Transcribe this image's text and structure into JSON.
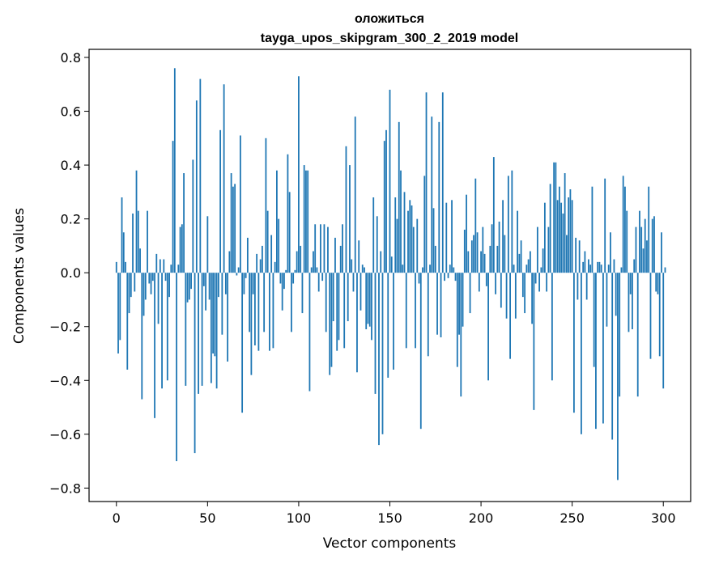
{
  "chart_data": {
    "type": "bar",
    "title_line1": "оложиться",
    "title_line2": "tayga_upos_skipgram_300_2_2019 model",
    "xlabel": "Vector components",
    "ylabel": "Components values",
    "xlim": [
      -15,
      315
    ],
    "ylim": [
      -0.85,
      0.83
    ],
    "x_ticks": [
      0,
      50,
      100,
      150,
      200,
      250,
      300
    ],
    "x_tick_labels": [
      "0",
      "50",
      "100",
      "150",
      "200",
      "250",
      "300"
    ],
    "y_ticks": [
      0.8,
      0.6,
      0.4,
      0.2,
      0.0,
      -0.2,
      -0.4,
      -0.6,
      -0.8
    ],
    "y_tick_labels": [
      "0.8",
      "0.6",
      "0.4",
      "0.2",
      "0.0",
      "−0.2",
      "−0.4",
      "−0.6",
      "−0.8"
    ],
    "bar_color": "#1f77b4",
    "values": [
      0.04,
      -0.3,
      -0.25,
      0.28,
      0.15,
      0.04,
      -0.36,
      -0.15,
      -0.09,
      0.22,
      -0.07,
      0.38,
      0.23,
      0.09,
      -0.47,
      -0.16,
      -0.1,
      0.23,
      -0.04,
      -0.08,
      -0.03,
      -0.54,
      0.07,
      -0.19,
      0.05,
      -0.43,
      0.05,
      -0.03,
      -0.4,
      -0.09,
      0.03,
      0.49,
      0.76,
      -0.7,
      0.03,
      0.17,
      0.18,
      0.37,
      -0.42,
      -0.11,
      -0.1,
      -0.06,
      0.42,
      -0.67,
      0.64,
      -0.45,
      0.72,
      -0.42,
      -0.05,
      -0.14,
      0.21,
      -0.1,
      -0.41,
      -0.3,
      -0.31,
      -0.43,
      -0.09,
      0.53,
      -0.23,
      0.7,
      -0.08,
      -0.33,
      0.08,
      0.37,
      0.32,
      0.33,
      -0.01,
      0.02,
      0.51,
      -0.52,
      -0.08,
      -0.02,
      0.13,
      -0.22,
      -0.38,
      -0.08,
      -0.27,
      0.07,
      -0.29,
      0.05,
      0.1,
      -0.22,
      0.5,
      0.23,
      -0.29,
      0.14,
      -0.28,
      0.04,
      0.38,
      0.2,
      -0.04,
      -0.14,
      -0.06,
      0.01,
      0.44,
      0.3,
      -0.22,
      -0.04,
      0.01,
      0.08,
      0.73,
      0.1,
      -0.15,
      0.4,
      0.38,
      0.38,
      -0.44,
      0.02,
      0.08,
      0.18,
      0.02,
      -0.07,
      0.18,
      -0.03,
      0.18,
      -0.22,
      0.17,
      -0.38,
      -0.35,
      -0.18,
      0.13,
      -0.29,
      -0.25,
      0.1,
      0.18,
      -0.28,
      0.47,
      -0.18,
      0.4,
      0.05,
      -0.07,
      0.58,
      -0.37,
      0.12,
      -0.14,
      0.03,
      0.02,
      -0.21,
      -0.19,
      -0.2,
      -0.25,
      0.28,
      -0.45,
      0.21,
      -0.64,
      0.08,
      -0.6,
      0.49,
      0.53,
      -0.39,
      0.68,
      0.06,
      -0.36,
      0.28,
      0.2,
      0.56,
      0.38,
      0.03,
      0.3,
      -0.28,
      0.23,
      0.27,
      0.25,
      0.17,
      -0.28,
      0.2,
      -0.04,
      -0.58,
      0.02,
      0.36,
      0.67,
      -0.31,
      0.03,
      0.58,
      0.24,
      0.1,
      -0.23,
      0.56,
      -0.24,
      0.67,
      -0.03,
      0.26,
      -0.02,
      0.03,
      0.27,
      0.02,
      -0.03,
      -0.35,
      -0.23,
      -0.46,
      -0.2,
      0.16,
      0.29,
      0.08,
      -0.15,
      0.12,
      0.14,
      0.35,
      0.15,
      -0.07,
      0.08,
      0.17,
      0.07,
      -0.05,
      -0.4,
      0.1,
      0.18,
      0.43,
      -0.08,
      0.1,
      0.19,
      -0.13,
      0.27,
      0.14,
      -0.17,
      0.36,
      -0.32,
      0.38,
      0.03,
      -0.17,
      0.23,
      0.07,
      0.12,
      -0.09,
      -0.15,
      0.03,
      0.05,
      0.08,
      -0.19,
      -0.51,
      -0.04,
      0.17,
      -0.07,
      0.02,
      0.09,
      0.26,
      -0.07,
      0.17,
      0.33,
      -0.4,
      0.41,
      0.41,
      0.27,
      0.32,
      0.26,
      0.22,
      0.37,
      0.14,
      0.28,
      0.31,
      0.27,
      -0.52,
      0.13,
      -0.1,
      0.12,
      -0.6,
      0.04,
      0.08,
      -0.1,
      0.05,
      0.03,
      0.32,
      -0.35,
      -0.58,
      0.04,
      0.04,
      0.03,
      -0.56,
      0.35,
      -0.2,
      0.03,
      0.15,
      -0.62,
      0.05,
      -0.16,
      -0.77,
      -0.46,
      0.02,
      0.36,
      0.32,
      0.23,
      -0.22,
      -0.08,
      -0.21,
      0.05,
      0.17,
      -0.46,
      0.23,
      0.17,
      0.09,
      0.2,
      0.12,
      0.32,
      -0.32,
      0.2,
      0.21,
      -0.07,
      -0.08,
      -0.31,
      0.15,
      -0.43,
      0.02
    ]
  }
}
